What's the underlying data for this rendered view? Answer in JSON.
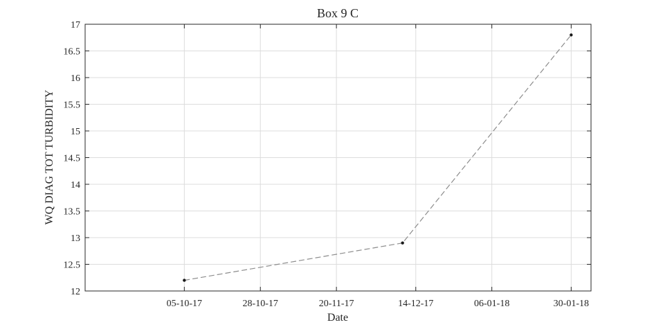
{
  "chart_data": {
    "type": "line",
    "title": "Box 9 C",
    "xlabel": "Date",
    "ylabel": "WQ DIAG TOT TURBIDITY",
    "x_ticks": [
      "05-10-17",
      "28-10-17",
      "20-11-17",
      "14-12-17",
      "06-01-18",
      "30-01-18"
    ],
    "y_ticks": [
      "12",
      "12.5",
      "13",
      "13.5",
      "14",
      "14.5",
      "15",
      "15.5",
      "16",
      "16.5",
      "17"
    ],
    "ylim": [
      12,
      17
    ],
    "xlim": [
      "2017-09-05",
      "2018-02-05"
    ],
    "grid": true,
    "line_style": "dashed",
    "line_color": "#8c8c8c",
    "marker_color": "#1a1a1a",
    "series": [
      {
        "x": [
          "2017-10-05",
          "2017-12-10",
          "2018-01-30"
        ],
        "y": [
          12.2,
          12.9,
          16.8
        ]
      }
    ]
  }
}
